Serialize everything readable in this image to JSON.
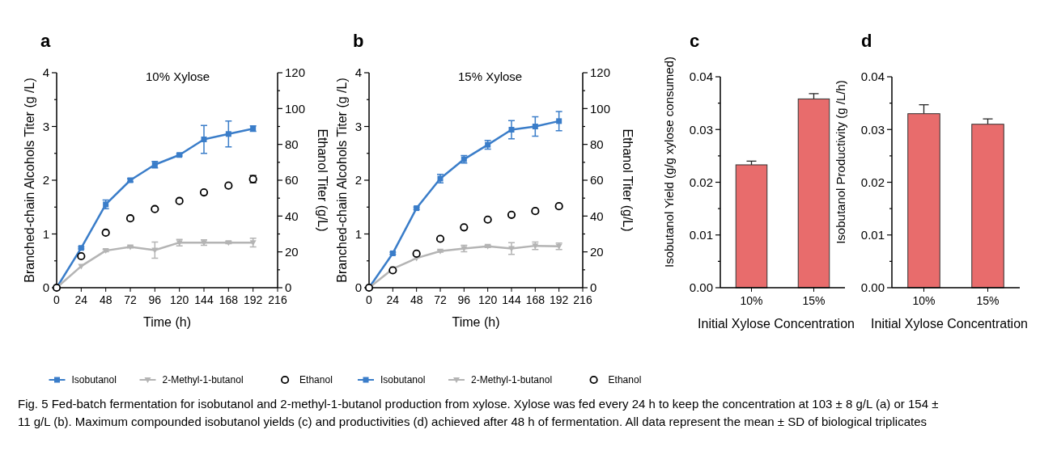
{
  "chart_data": [
    {
      "type": "line",
      "title": "a",
      "subtitle": "10% Xylose",
      "xlabel": "Time (h)",
      "ylabel": "Branched-chain Alcohols Titer (g /L)",
      "y2label": "Ethanol Titer (g/L)",
      "x": [
        0,
        24,
        48,
        72,
        96,
        120,
        144,
        168,
        192
      ],
      "xlim": [
        0,
        216
      ],
      "xticks": [
        0,
        24,
        48,
        72,
        96,
        120,
        144,
        168,
        192,
        216
      ],
      "ylim": [
        0,
        4
      ],
      "yticks": [
        0,
        {
          "value": 0.5,
          "label": null
        },
        1,
        {
          "value": 1.5,
          "label": null
        },
        2,
        {
          "value": 2.5,
          "label": null
        },
        3,
        {
          "value": 3.5,
          "label": null
        },
        4
      ],
      "y2lim": [
        0,
        120
      ],
      "y2ticks": [
        0,
        {
          "value": 10,
          "label": null
        },
        20,
        {
          "value": 30,
          "label": null
        },
        40,
        {
          "value": 50,
          "label": null
        },
        60,
        {
          "value": 70,
          "label": null
        },
        80,
        {
          "value": 90,
          "label": null
        },
        100,
        {
          "value": 110,
          "label": null
        },
        120
      ],
      "legend": "bottom",
      "series": [
        {
          "name": "Isobutanol",
          "type": "line",
          "marker": "square",
          "color": "#3a7dc9",
          "values": [
            0,
            0.74,
            1.55,
            2.0,
            2.29,
            2.47,
            2.76,
            2.86,
            2.96
          ],
          "errors": [
            null,
            0.02,
            0.08,
            0.03,
            0.06,
            0.02,
            0.26,
            0.24,
            0.05
          ]
        },
        {
          "name": "2-Methyl-1-butanol",
          "type": "line",
          "marker": "triangle",
          "color": "#b4b4b4",
          "values": [
            0,
            0.4,
            0.69,
            0.76,
            0.7,
            0.84,
            0.84,
            0.84,
            0.84
          ],
          "errors": [
            null,
            null,
            0.02,
            0.02,
            0.15,
            0.06,
            0.05,
            0.02,
            0.08
          ]
        },
        {
          "name": "Ethanol",
          "type": "scatter",
          "marker": "circle",
          "axis": "y2",
          "color": "#000000",
          "values": [
            0,
            17.6,
            30.7,
            38.7,
            43.9,
            48.4,
            53.2,
            57,
            60.6
          ],
          "errors": [
            null,
            null,
            null,
            null,
            null,
            null,
            null,
            null,
            2
          ]
        }
      ]
    },
    {
      "type": "line",
      "title": "b",
      "subtitle": "15% Xylose",
      "xlabel": "Time (h)",
      "ylabel": "Branched-chain Alcohols Titer (g /L)",
      "y2label": "Ethanol Titer (g/L)",
      "x": [
        0,
        24,
        48,
        72,
        96,
        120,
        144,
        168,
        192
      ],
      "xlim": [
        0,
        216
      ],
      "xticks": [
        0,
        24,
        48,
        72,
        96,
        120,
        144,
        168,
        192,
        216
      ],
      "ylim": [
        0,
        4
      ],
      "yticks": [
        0,
        {
          "value": 0.5,
          "label": null
        },
        1,
        {
          "value": 1.5,
          "label": null
        },
        2,
        {
          "value": 2.5,
          "label": null
        },
        3,
        {
          "value": 3.5,
          "label": null
        },
        4
      ],
      "y2lim": [
        0,
        120
      ],
      "y2ticks": [
        0,
        {
          "value": 10,
          "label": null
        },
        20,
        {
          "value": 30,
          "label": null
        },
        40,
        {
          "value": 50,
          "label": null
        },
        60,
        {
          "value": 70,
          "label": null
        },
        80,
        {
          "value": 90,
          "label": null
        },
        100,
        {
          "value": 110,
          "label": null
        },
        120
      ],
      "legend": "bottom",
      "series": [
        {
          "name": "Isobutanol",
          "type": "line",
          "marker": "square",
          "color": "#3a7dc9",
          "values": [
            0,
            0.64,
            1.48,
            2.03,
            2.39,
            2.66,
            2.94,
            3.0,
            3.1
          ],
          "errors": [
            null,
            0.02,
            0.02,
            0.08,
            0.07,
            0.08,
            0.17,
            0.18,
            0.18
          ]
        },
        {
          "name": "2-Methyl-1-butanol",
          "type": "line",
          "marker": "triangle",
          "color": "#b4b4b4",
          "values": [
            0,
            0.35,
            0.55,
            0.68,
            0.73,
            0.77,
            0.73,
            0.78,
            0.77
          ],
          "errors": [
            null,
            null,
            null,
            0.02,
            0.06,
            0.02,
            0.11,
            0.07,
            0.06
          ]
        },
        {
          "name": "Ethanol",
          "type": "scatter",
          "marker": "circle",
          "axis": "y2",
          "color": "#000000",
          "values": [
            0,
            9.7,
            19,
            27.3,
            33.7,
            38,
            40.7,
            42.8,
            45.5
          ],
          "errors": [
            null,
            null,
            null,
            null,
            null,
            null,
            null,
            1,
            1
          ]
        }
      ]
    },
    {
      "type": "bar",
      "title": "c",
      "xlabel": "Initial Xylose Concentration",
      "ylabel": "Isobutanol Yield (g/g xylose consumed)",
      "categories": [
        "10%",
        "15%"
      ],
      "values": [
        0.0233,
        0.0358
      ],
      "errors": [
        0.0007,
        0.001
      ],
      "color": "#e86c6c",
      "ylim": [
        0,
        0.04
      ],
      "yticks": [
        {
          "value": 0,
          "label": "0.00"
        },
        {
          "value": 0.005,
          "label": null
        },
        0.01,
        {
          "value": 0.015,
          "label": null
        },
        0.02,
        {
          "value": 0.025,
          "label": null
        },
        0.03,
        {
          "value": 0.035,
          "label": null
        },
        0.04
      ]
    },
    {
      "type": "bar",
      "title": "d",
      "xlabel": "Initial Xylose Concentration",
      "ylabel": "Isobutanol Productivity (g /L/h)",
      "categories": [
        "10%",
        "15%"
      ],
      "values": [
        0.033,
        0.031
      ],
      "errors": [
        0.0017,
        0.001
      ],
      "color": "#e86c6c",
      "ylim": [
        0,
        0.04
      ],
      "yticks": [
        {
          "value": 0,
          "label": "0.00"
        },
        {
          "value": 0.005,
          "label": null
        },
        0.01,
        {
          "value": 0.015,
          "label": null
        },
        0.02,
        {
          "value": 0.025,
          "label": null
        },
        0.03,
        {
          "value": 0.035,
          "label": null
        },
        0.04
      ],
      "annotations": [
        "Fig. 5  Fed-batch fermentation for isobutanol and 2-methyl-1-butanol production from xylose. Xylose was fed every 24 h to keep the concentration at 103 ± 8 g/L (a) or 154 ± 11 g/L (b). Maximum compounded isobutanol yields (c) and productivities (d) achieved after 48 h of fermentation. All data represent the mean ± SD of biological triplicates"
      ]
    }
  ]
}
